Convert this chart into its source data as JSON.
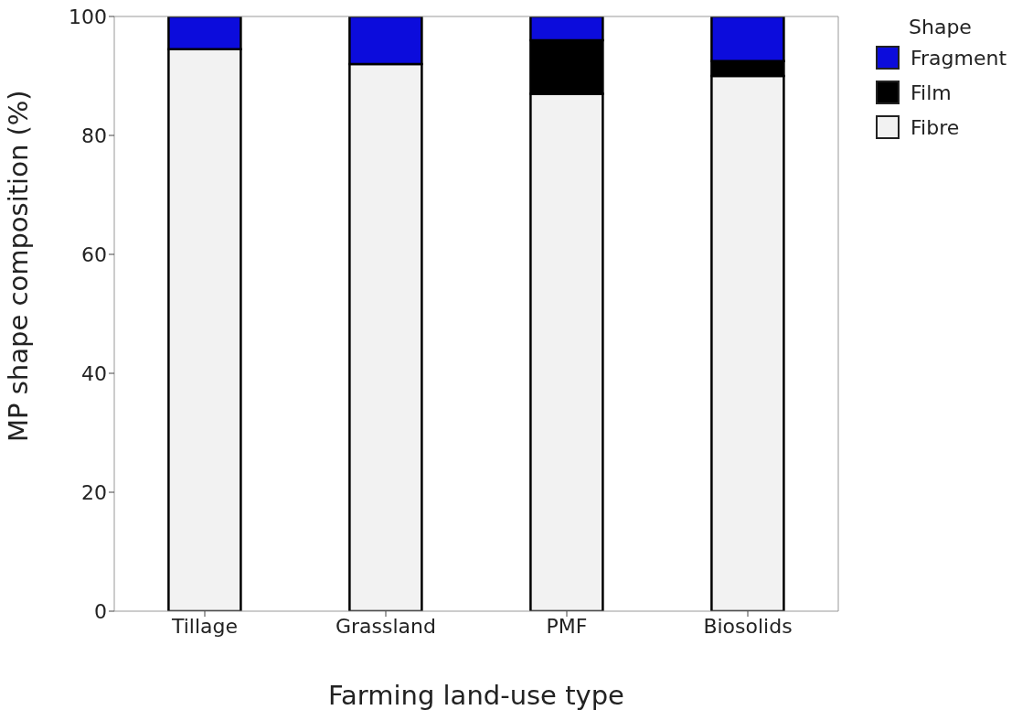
{
  "chart_data": {
    "type": "bar",
    "xlabel": "Farming land-use type",
    "ylabel": "MP shape composition (%)",
    "legend_title": "Shape",
    "categories": [
      "Tillage",
      "Grassland",
      "PMF",
      "Biosolids"
    ],
    "series": [
      {
        "name": "Fibre",
        "color": "#f2f2f2",
        "values": [
          94.5,
          92,
          87,
          90
        ]
      },
      {
        "name": "Film",
        "color": "#000000",
        "values": [
          0,
          0,
          9,
          2.5
        ]
      },
      {
        "name": "Fragment",
        "color": "#0c0cdc",
        "values": [
          5.5,
          8,
          4,
          7.5
        ]
      }
    ],
    "stacked": true,
    "ylim": [
      0,
      100
    ],
    "yticks": [
      0,
      20,
      40,
      60,
      80,
      100
    ],
    "grid": false,
    "legend": "top right"
  }
}
